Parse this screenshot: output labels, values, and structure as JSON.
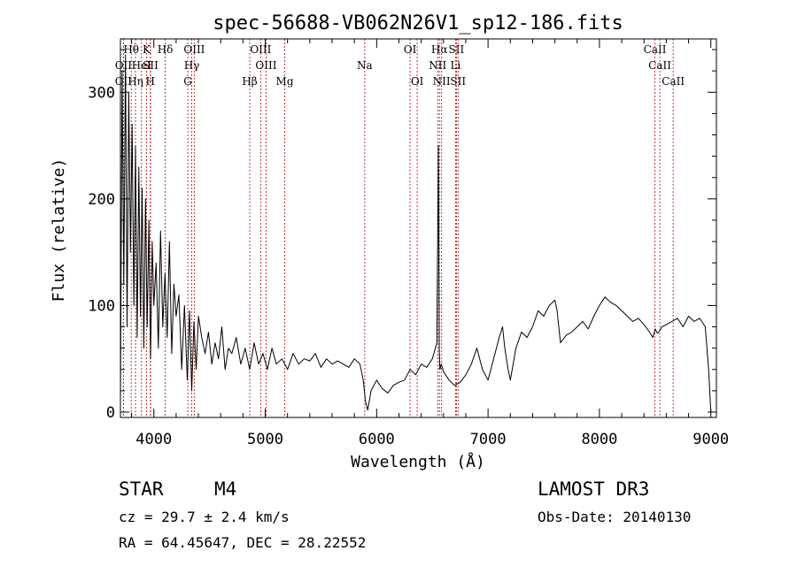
{
  "chart_data": {
    "type": "line",
    "title": "spec-56688-VB062N26V1_sp12-186.fits",
    "xlabel": "Wavelength (Å)",
    "ylabel": "Flux (relative)",
    "xlim": [
      3700,
      9050
    ],
    "ylim": [
      -5,
      350
    ],
    "xticks": [
      4000,
      5000,
      6000,
      7000,
      8000,
      9000
    ],
    "yticks": [
      0,
      100,
      200,
      300
    ],
    "xtick_labels": [
      "4000",
      "5000",
      "6000",
      "7000",
      "8000",
      "9000"
    ],
    "ytick_labels": [
      "0",
      "100",
      "200",
      "300"
    ],
    "line_color": "#000000",
    "marker_color": "#b22222",
    "series": [
      {
        "name": "flux",
        "x": [
          3700,
          3715,
          3730,
          3745,
          3760,
          3775,
          3790,
          3805,
          3820,
          3835,
          3850,
          3865,
          3880,
          3895,
          3910,
          3925,
          3940,
          3955,
          3970,
          3985,
          4000,
          4020,
          4040,
          4060,
          4080,
          4100,
          4120,
          4140,
          4160,
          4180,
          4200,
          4225,
          4250,
          4275,
          4300,
          4320,
          4340,
          4360,
          4380,
          4400,
          4430,
          4460,
          4490,
          4520,
          4550,
          4580,
          4610,
          4640,
          4670,
          4700,
          4740,
          4780,
          4820,
          4860,
          4900,
          4940,
          4980,
          5020,
          5060,
          5100,
          5150,
          5200,
          5250,
          5300,
          5350,
          5400,
          5450,
          5500,
          5550,
          5600,
          5650,
          5700,
          5750,
          5800,
          5850,
          5880,
          5900,
          5920,
          5950,
          6000,
          6050,
          6100,
          6150,
          6200,
          6250,
          6300,
          6350,
          6400,
          6450,
          6500,
          6540,
          6555,
          6562,
          6568,
          6580,
          6600,
          6650,
          6700,
          6750,
          6800,
          6850,
          6900,
          6950,
          7000,
          7050,
          7100,
          7130,
          7150,
          7180,
          7200,
          7250,
          7300,
          7350,
          7400,
          7450,
          7500,
          7550,
          7600,
          7620,
          7650,
          7700,
          7750,
          7800,
          7850,
          7900,
          7950,
          8000,
          8050,
          8100,
          8150,
          8200,
          8250,
          8300,
          8350,
          8400,
          8450,
          8480,
          8500,
          8520,
          8540,
          8560,
          8600,
          8650,
          8700,
          8750,
          8800,
          8850,
          8900,
          8950,
          8980,
          9000
        ],
        "y": [
          10,
          320,
          120,
          335,
          80,
          300,
          150,
          270,
          100,
          250,
          70,
          230,
          90,
          210,
          60,
          200,
          80,
          180,
          50,
          160,
          100,
          140,
          60,
          170,
          80,
          130,
          70,
          160,
          55,
          120,
          90,
          110,
          40,
          100,
          30,
          95,
          20,
          85,
          40,
          90,
          70,
          55,
          75,
          45,
          65,
          50,
          80,
          40,
          60,
          55,
          70,
          45,
          60,
          40,
          65,
          45,
          55,
          40,
          60,
          45,
          50,
          40,
          55,
          45,
          50,
          48,
          55,
          42,
          50,
          45,
          48,
          45,
          42,
          50,
          45,
          30,
          10,
          2,
          20,
          30,
          22,
          18,
          25,
          28,
          30,
          40,
          35,
          45,
          42,
          50,
          65,
          250,
          60,
          40,
          45,
          38,
          30,
          25,
          28,
          35,
          45,
          60,
          40,
          30,
          50,
          70,
          80,
          60,
          40,
          30,
          60,
          75,
          70,
          80,
          95,
          90,
          100,
          105,
          95,
          65,
          72,
          75,
          80,
          85,
          78,
          90,
          100,
          108,
          103,
          100,
          95,
          90,
          85,
          88,
          82,
          75,
          70,
          78,
          74,
          76,
          80,
          82,
          85,
          88,
          80,
          90,
          85,
          88,
          80,
          40,
          0
        ]
      }
    ],
    "line_markers": [
      {
        "label": "OII",
        "x": 3727,
        "row": 2
      },
      {
        "label": "OII",
        "x": 3727,
        "row": 3
      },
      {
        "label": "Hθ",
        "x": 3797,
        "row": 1
      },
      {
        "label": "Hη",
        "x": 3835,
        "row": 3
      },
      {
        "label": "HeI",
        "x": 3889,
        "row": 2
      },
      {
        "label": "K",
        "x": 3934,
        "row": 1
      },
      {
        "label": "SII",
        "x": 3970,
        "row": 2
      },
      {
        "label": "H",
        "x": 3968,
        "row": 3
      },
      {
        "label": "Hδ",
        "x": 4102,
        "row": 1
      },
      {
        "label": "OIII",
        "x": 4363,
        "row": 1
      },
      {
        "label": "Hγ",
        "x": 4340,
        "row": 2
      },
      {
        "label": "G",
        "x": 4305,
        "row": 3
      },
      {
        "label": "Hβ",
        "x": 4861,
        "row": 3
      },
      {
        "label": "OIII",
        "x": 4959,
        "row": 1
      },
      {
        "label": "OIII",
        "x": 5007,
        "row": 2
      },
      {
        "label": "Mg",
        "x": 5175,
        "row": 3
      },
      {
        "label": "Na",
        "x": 5893,
        "row": 2
      },
      {
        "label": "OI",
        "x": 6300,
        "row": 1
      },
      {
        "label": "OI",
        "x": 6364,
        "row": 3
      },
      {
        "label": "Hα",
        "x": 6563,
        "row": 1
      },
      {
        "label": "SII",
        "x": 6716,
        "row": 1
      },
      {
        "label": "NII",
        "x": 6548,
        "row": 2
      },
      {
        "label": "Li",
        "x": 6708,
        "row": 2
      },
      {
        "label": "NII",
        "x": 6583,
        "row": 3
      },
      {
        "label": "SII",
        "x": 6731,
        "row": 3
      },
      {
        "label": "CaII",
        "x": 8498,
        "row": 1
      },
      {
        "label": "CaII",
        "x": 8542,
        "row": 2
      },
      {
        "label": "CaII",
        "x": 8662,
        "row": 3
      }
    ]
  },
  "info": {
    "object_class": "STAR",
    "subclass": "M4",
    "survey": "LAMOST DR3",
    "redshift": "cz = 29.7 ± 2.4 km/s",
    "obs_date": "Obs-Date: 20140130",
    "coords": "RA =  64.45647, DEC =  28.22552"
  }
}
